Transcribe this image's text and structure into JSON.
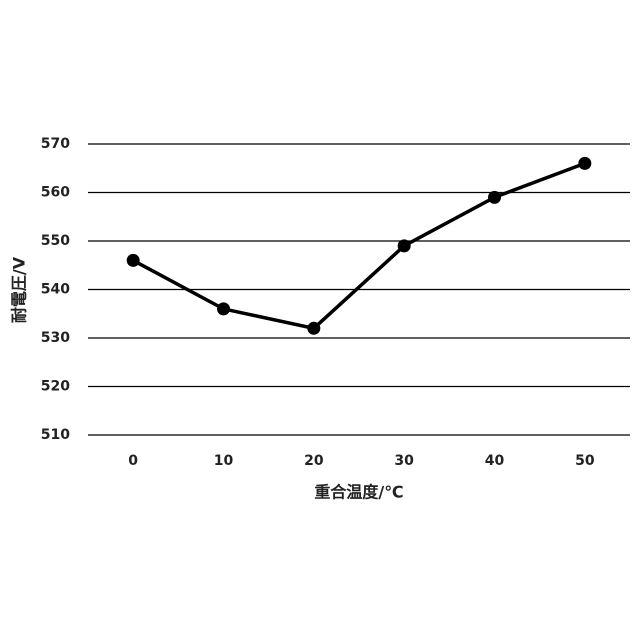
{
  "chart_data": {
    "type": "line",
    "categories": [
      "0",
      "10",
      "20",
      "30",
      "40",
      "50"
    ],
    "series": [
      {
        "color": "#000000",
        "values": [
          546,
          536,
          532,
          549,
          559,
          566
        ]
      }
    ],
    "x_label": "重合温度/℃",
    "y_label": "耐電圧/V",
    "ylim": [
      510,
      570
    ],
    "yticks": [
      510,
      520,
      530,
      540,
      550,
      560,
      570
    ],
    "grid": true
  }
}
